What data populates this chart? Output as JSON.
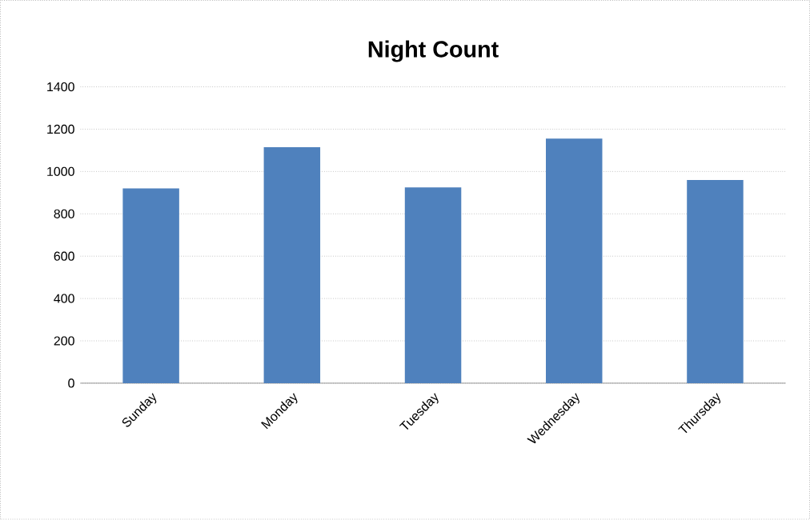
{
  "chart_data": {
    "type": "bar",
    "title": "Night Count",
    "categories": [
      "Sunday",
      "Monday",
      "Tuesday",
      "Wednesday",
      "Thursday"
    ],
    "values": [
      920,
      1115,
      925,
      1155,
      960
    ],
    "color": "#4f81bd",
    "ylim": [
      0,
      1400
    ],
    "yticks": [
      0,
      200,
      400,
      600,
      800,
      1000,
      1200,
      1400
    ],
    "grid": "y"
  }
}
